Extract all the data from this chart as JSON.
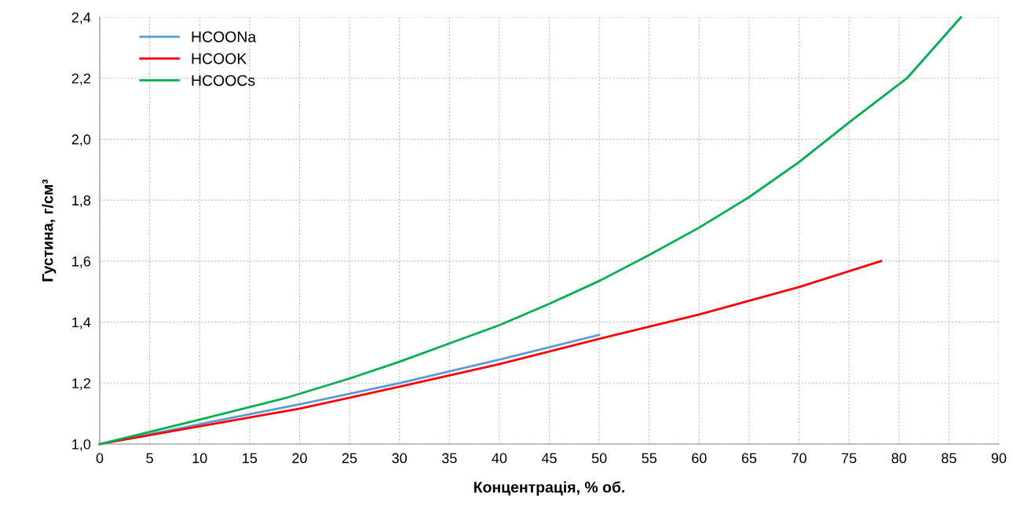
{
  "chart_data": {
    "type": "line",
    "xlabel": "Концентрація, % об.",
    "ylabel": "Густина, г/см³",
    "xlim": [
      0,
      90
    ],
    "xticks": [
      0,
      5,
      10,
      15,
      20,
      25,
      30,
      35,
      40,
      45,
      50,
      55,
      60,
      65,
      70,
      75,
      80,
      85,
      90
    ],
    "ylim": [
      1.0,
      2.4
    ],
    "yticks": [
      {
        "value": 1.0,
        "label": "1,0"
      },
      {
        "value": 1.2,
        "label": "1,2"
      },
      {
        "value": 1.4,
        "label": "1,4"
      },
      {
        "value": 1.6,
        "label": "1,6"
      },
      {
        "value": 1.8,
        "label": "1,8"
      },
      {
        "value": 2.0,
        "label": "2,0"
      },
      {
        "value": 2.2,
        "label": "2,2"
      },
      {
        "value": 2.4,
        "label": "2,4"
      }
    ],
    "grid": true,
    "legend": "top left",
    "marker": "none",
    "line_style": "solid",
    "series": [
      {
        "name": "HCOONa",
        "color": "#5b9bd5",
        "x": [
          0,
          10,
          20,
          30,
          40,
          50
        ],
        "values": [
          1.0,
          1.065,
          1.13,
          1.2,
          1.277,
          1.358
        ]
      },
      {
        "name": "HCOOK",
        "color": "#ff0000",
        "x": [
          0,
          10,
          20,
          30,
          40,
          50,
          60,
          70,
          78.2
        ],
        "values": [
          1.0,
          1.058,
          1.116,
          1.188,
          1.262,
          1.345,
          1.425,
          1.515,
          1.6
        ]
      },
      {
        "name": "HCOOCs",
        "color": "#00b050",
        "x": [
          0,
          10,
          18.5,
          25,
          30,
          35,
          40,
          45,
          50,
          55,
          60,
          65,
          70,
          75,
          80.8,
          86.2
        ],
        "values": [
          1.0,
          1.08,
          1.15,
          1.215,
          1.27,
          1.33,
          1.39,
          1.46,
          1.535,
          1.62,
          1.71,
          1.81,
          1.925,
          2.055,
          2.2,
          2.4
        ]
      }
    ]
  }
}
